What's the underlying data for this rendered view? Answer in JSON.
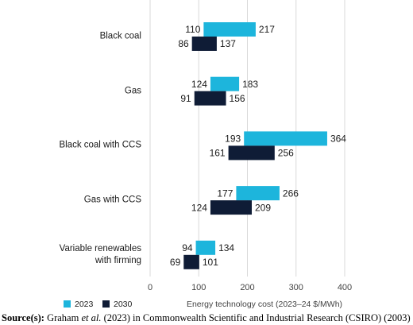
{
  "chart_data": {
    "type": "range-bar",
    "categories": [
      "Black coal",
      "Gas",
      "Black coal with CCS",
      "Gas with CCS",
      "Variable renewables with firming"
    ],
    "series": [
      {
        "name": "2023",
        "color": "#1db5dc",
        "low": [
          110,
          124,
          193,
          177,
          94
        ],
        "high": [
          217,
          183,
          364,
          266,
          134
        ]
      },
      {
        "name": "2030",
        "color": "#0f1c36",
        "low": [
          86,
          91,
          161,
          124,
          69
        ],
        "high": [
          137,
          156,
          256,
          209,
          101
        ]
      }
    ],
    "x_label": "Energy technology cost (2023–24 $/MWh)",
    "xlim": [
      0,
      400
    ],
    "xticks": [
      0,
      100,
      200,
      300,
      400
    ],
    "grid": true
  },
  "source": {
    "label": "Source(s):",
    "before": "Graham ",
    "italic": "et al.",
    "after": " (2023) in Commonwealth Scientific and Industrial Research (CSIRO) (2003)"
  }
}
